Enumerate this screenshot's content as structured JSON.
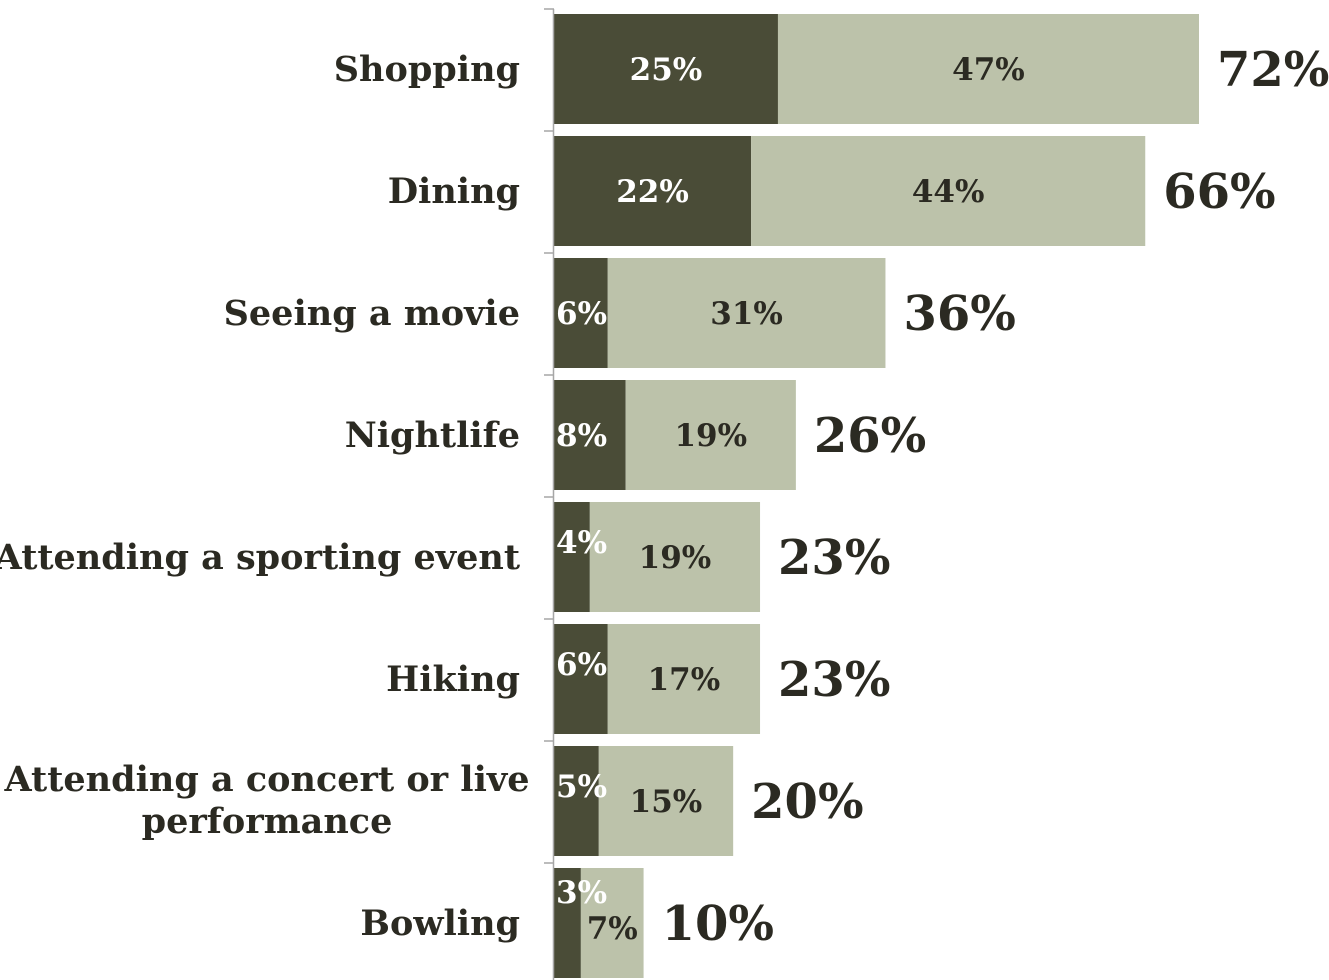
{
  "chart_data": {
    "type": "bar",
    "orientation": "horizontal",
    "stacked": true,
    "categories": [
      [
        "Shopping"
      ],
      [
        "Dining"
      ],
      [
        "Seeing a movie"
      ],
      [
        "Nightlife"
      ],
      [
        "Attending a sporting event"
      ],
      [
        "Hiking"
      ],
      [
        "Attending a concert or live",
        "performance"
      ],
      [
        "Bowling"
      ]
    ],
    "series": [
      {
        "values": [
          25,
          22,
          6,
          8,
          4,
          6,
          5,
          3
        ],
        "labels": [
          "25%",
          "22%",
          "6%",
          "8%",
          "4%",
          "6%",
          "5%",
          "3%"
        ],
        "color": "#4a4c37",
        "label_color": "#ffffff"
      },
      {
        "values": [
          47,
          44,
          31,
          19,
          19,
          17,
          15,
          7
        ],
        "labels": [
          "47%",
          "44%",
          "31%",
          "19%",
          "19%",
          "17%",
          "15%",
          "7%"
        ],
        "color": "#bcc2aa",
        "label_color": "#2b2a22"
      }
    ],
    "totals": [
      "72%",
      "66%",
      "36%",
      "26%",
      "23%",
      "23%",
      "20%",
      "10%"
    ],
    "xlim": [
      0,
      72
    ],
    "title": "",
    "xlabel": "",
    "ylabel": "",
    "grid": false,
    "legend": "none",
    "axis_color": "#a6a6a6"
  }
}
